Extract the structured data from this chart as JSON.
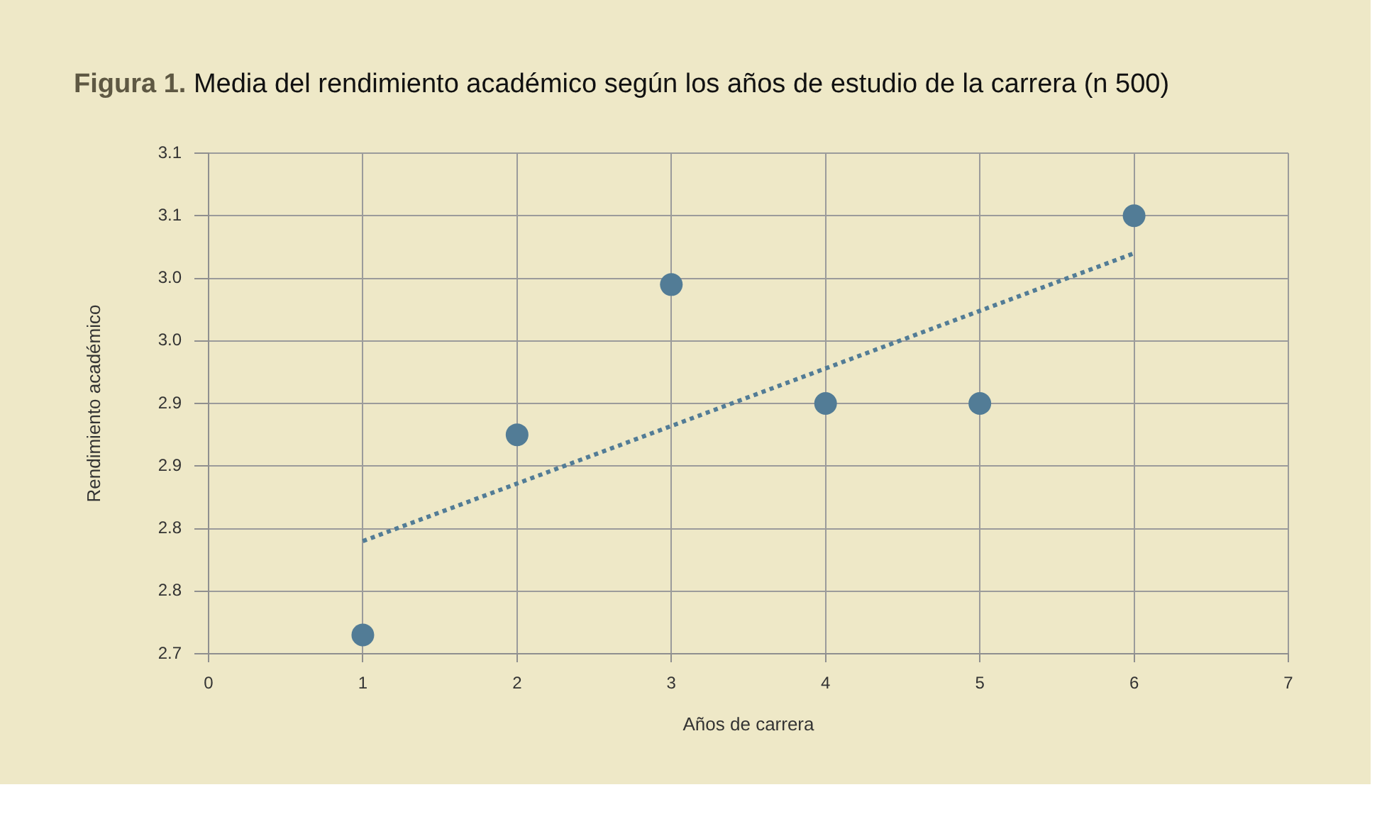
{
  "chart_data": {
    "type": "scatter",
    "title": "Figura 1. Media del rendimiento académico según los años de estudio de la carrera (n 500)",
    "xlabel": "Años de carrera",
    "ylabel": "Rendimiento académico",
    "x": [
      1,
      2,
      3,
      4,
      5,
      6
    ],
    "series": [
      {
        "color": "#527c96",
        "values": [
          2.715,
          2.875,
          2.995,
          2.9,
          2.9,
          3.05
        ]
      },
      {
        "type": "line",
        "x": [
          1,
          6
        ],
        "values": [
          2.79,
          3.02
        ],
        "color": "#527c96",
        "line_style": "dotted",
        "marker": "none"
      }
    ],
    "xlim": [
      0,
      7
    ],
    "xticks": [
      0,
      1,
      2,
      3,
      4,
      5,
      6,
      7
    ],
    "ylim": [
      2.7,
      3.1
    ],
    "yticks": [
      2.7,
      {
        "value": 2.75,
        "label": "2.8"
      },
      2.8,
      {
        "value": 2.85,
        "label": "2.9"
      },
      2.9,
      {
        "value": 2.95,
        "label": "3.0"
      },
      {
        "value": 3,
        "label": "3.0"
      },
      {
        "value": 3.05,
        "label": "3.1"
      },
      3.1
    ],
    "grid": true,
    "marker": "circle"
  }
}
